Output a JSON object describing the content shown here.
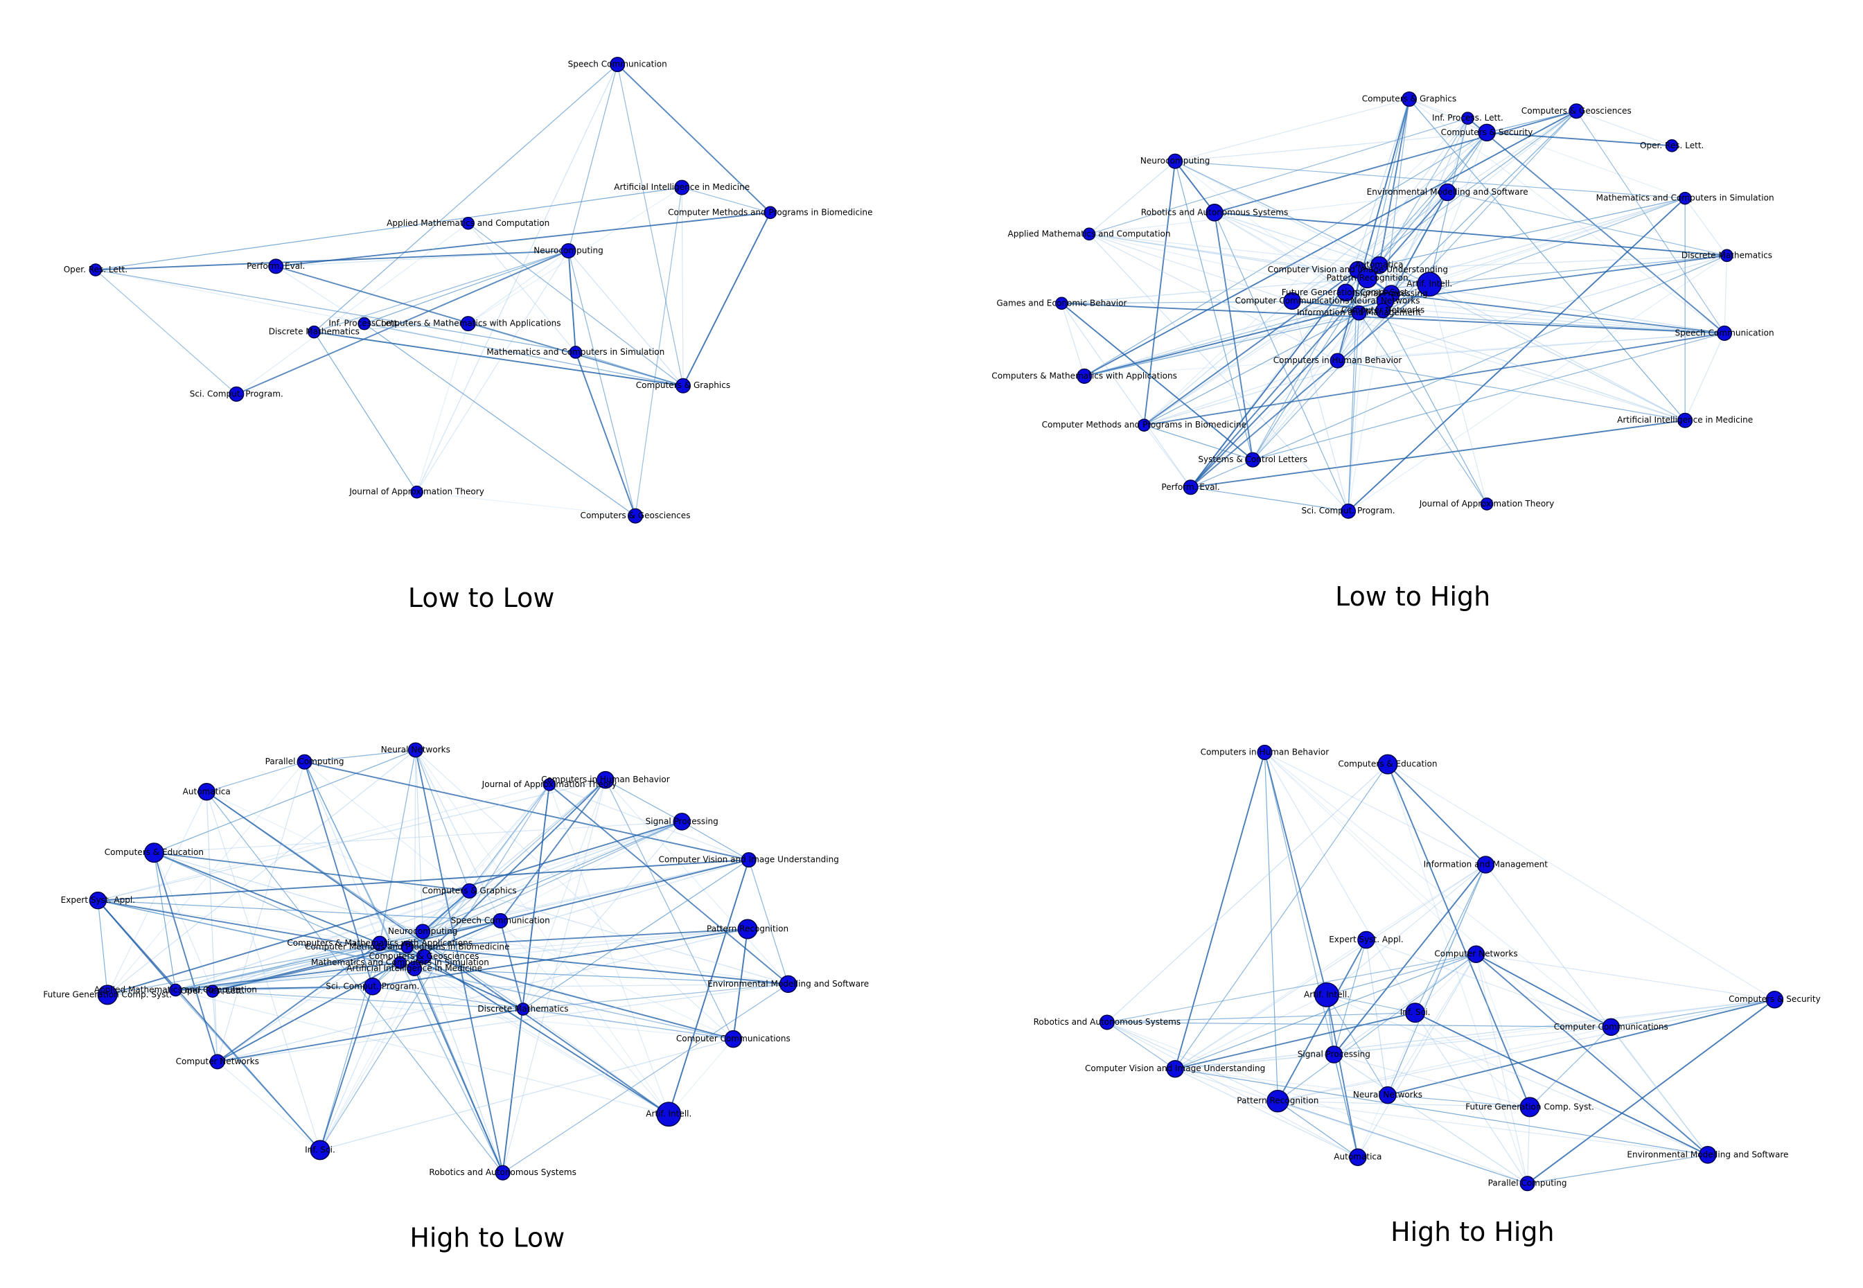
{
  "panels": [
    {
      "title": "Low to Low",
      "nodes": [
        "Speech Communication",
        "Artificial Intelligence in Medicine",
        "Computer Methods and Programs in Biomedicine",
        "Applied Mathematics and Computation",
        "Neurocomputing",
        "Oper. Res. Lett.",
        "Perform. Eval.",
        "Inf. Process. Lett.",
        "Computers & Mathematics with Applications",
        "Discrete Mathematics",
        "Mathematics and Computers in Simulation",
        "Computers & Graphics",
        "Sci. Comput. Program.",
        "Journal of Approximation Theory",
        "Computers & Geosciences"
      ]
    },
    {
      "title": "Low to High",
      "nodes": [
        "Computers & Graphics",
        "Inf. Process. Lett.",
        "Computers & Geosciences",
        "Computers & Security",
        "Oper. Res. Lett.",
        "Neurocomputing",
        "Environmental Modelling and Software",
        "Mathematics and Computers in Simulation",
        "Robotics and Autonomous Systems",
        "Applied Mathematics and Computation",
        "Discrete Mathematics",
        "Games and Economic Behavior",
        "Speech Communication",
        "Computers & Mathematics with Applications",
        "Computers in Human Behavior",
        "Computer Methods and Programs in Biomedicine",
        "Artificial Intelligence in Medicine",
        "Systems & Control Letters",
        "Perform. Eval.",
        "Sci. Comput. Program.",
        "Journal of Approximation Theory",
        "Automatica",
        "Computer Vision and Image Understanding",
        "Pattern Recognition",
        "Artif. Intell.",
        "Future Generation Comp. Syst.",
        "Computer Communications",
        "Signal Processing",
        "Neural Networks",
        "Information and Management",
        "Computer Networks"
      ]
    },
    {
      "title": "High to Low",
      "nodes": [
        "Neural Networks",
        "Parallel Computing",
        "Computers in Human Behavior",
        "Journal of Approximation Theory",
        "Automatica",
        "Signal Processing",
        "Computers & Education",
        "Computer Vision and Image Understanding",
        "Computers & Graphics",
        "Expert Syst. Appl.",
        "Speech Communication",
        "Pattern Recognition",
        "Neurocomputing",
        "Computers & Mathematics with Applications",
        "Computer Methods and Programs in Biomedicine",
        "Computers & Geosciences",
        "Mathematics and Computers in Simulation",
        "Artificial Intelligence in Medicine",
        "Environmental Modelling and Software",
        "Sci. Comput. Program.",
        "Applied Mathematics and Computation",
        "Oper. Res. Lett.",
        "Future Generation Comp. Syst.",
        "Discrete Mathematics",
        "Computer Communications",
        "Computer Networks",
        "Artif. Intell.",
        "Inf. Sci.",
        "Robotics and Autonomous Systems"
      ]
    },
    {
      "title": "High to High",
      "nodes": [
        "Computers in Human Behavior",
        "Computers & Education",
        "Information and Management",
        "Expert Syst. Appl.",
        "Computer Networks",
        "Computers & Security",
        "Artif. Intell.",
        "Inf. Sci.",
        "Robotics and Autonomous Systems",
        "Computer Communications",
        "Signal Processing",
        "Computer Vision and Image Understanding",
        "Neural Networks",
        "Pattern Recognition",
        "Future Generation Comp. Syst.",
        "Automatica",
        "Environmental Modelling and Software",
        "Parallel Computing"
      ]
    }
  ]
}
